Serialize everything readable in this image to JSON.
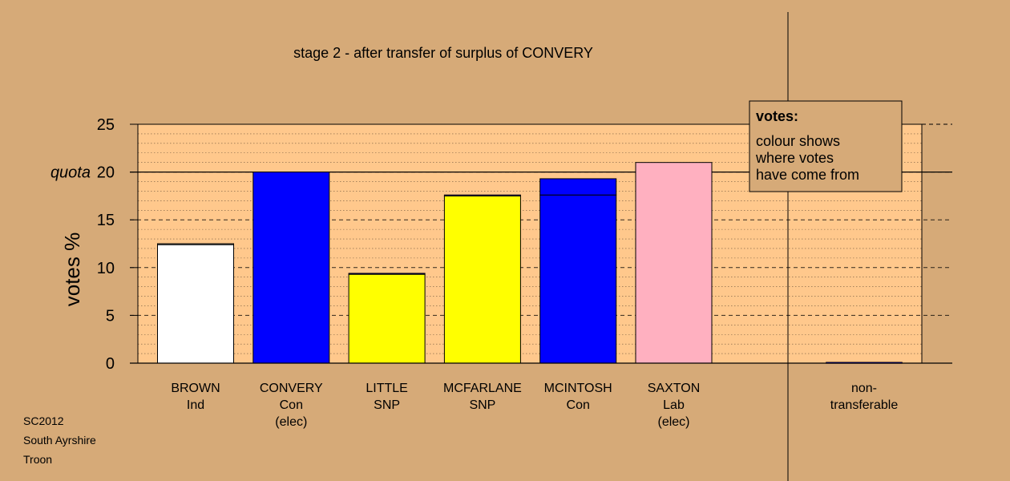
{
  "chart_data": {
    "type": "bar",
    "title": "stage 2 - after transfer of surplus of CONVERY",
    "ylabel": "votes %",
    "ylim": [
      0,
      25
    ],
    "yticks": [
      0,
      5,
      10,
      15,
      20,
      25
    ],
    "quota": {
      "label": "quota",
      "value": 20
    },
    "grid": true,
    "candidates": [
      {
        "name": "BROWN",
        "party": "Ind",
        "status": "",
        "segments": [
          {
            "value": 12.4,
            "color": "#ffffff"
          },
          {
            "value": 0.1,
            "color": "#ffffff"
          }
        ]
      },
      {
        "name": "CONVERY",
        "party": "Con",
        "status": "(elec)",
        "segments": [
          {
            "value": 20.0,
            "color": "#0000ff"
          }
        ]
      },
      {
        "name": "LITTLE",
        "party": "SNP",
        "status": "",
        "segments": [
          {
            "value": 9.3,
            "color": "#ffff00"
          },
          {
            "value": 0.1,
            "color": "#0000ff"
          }
        ]
      },
      {
        "name": "MCFARLANE",
        "party": "SNP",
        "status": "",
        "segments": [
          {
            "value": 17.5,
            "color": "#ffff00"
          },
          {
            "value": 0.1,
            "color": "#0000ff"
          }
        ]
      },
      {
        "name": "MCINTOSH",
        "party": "Con",
        "status": "",
        "segments": [
          {
            "value": 17.6,
            "color": "#0000ff"
          },
          {
            "value": 1.7,
            "color": "#0000ff"
          }
        ]
      },
      {
        "name": "SAXTON",
        "party": "Lab",
        "status": "(elec)",
        "segments": [
          {
            "value": 21.0,
            "color": "#ffb0c0"
          }
        ]
      }
    ],
    "non_transferable": {
      "label_line1": "non-",
      "label_line2": "transferable",
      "value": 0.1,
      "color": "#0000ff"
    }
  },
  "legend": {
    "heading": "votes:",
    "lines": [
      "colour shows",
      "where votes",
      "have come from"
    ],
    "placement": "top-right"
  },
  "footer": {
    "lines": [
      "SC2012",
      "South Ayrshire",
      "Troon"
    ]
  },
  "colors": {
    "background": "#d6aa78",
    "plot_area": "#ffc88c"
  }
}
